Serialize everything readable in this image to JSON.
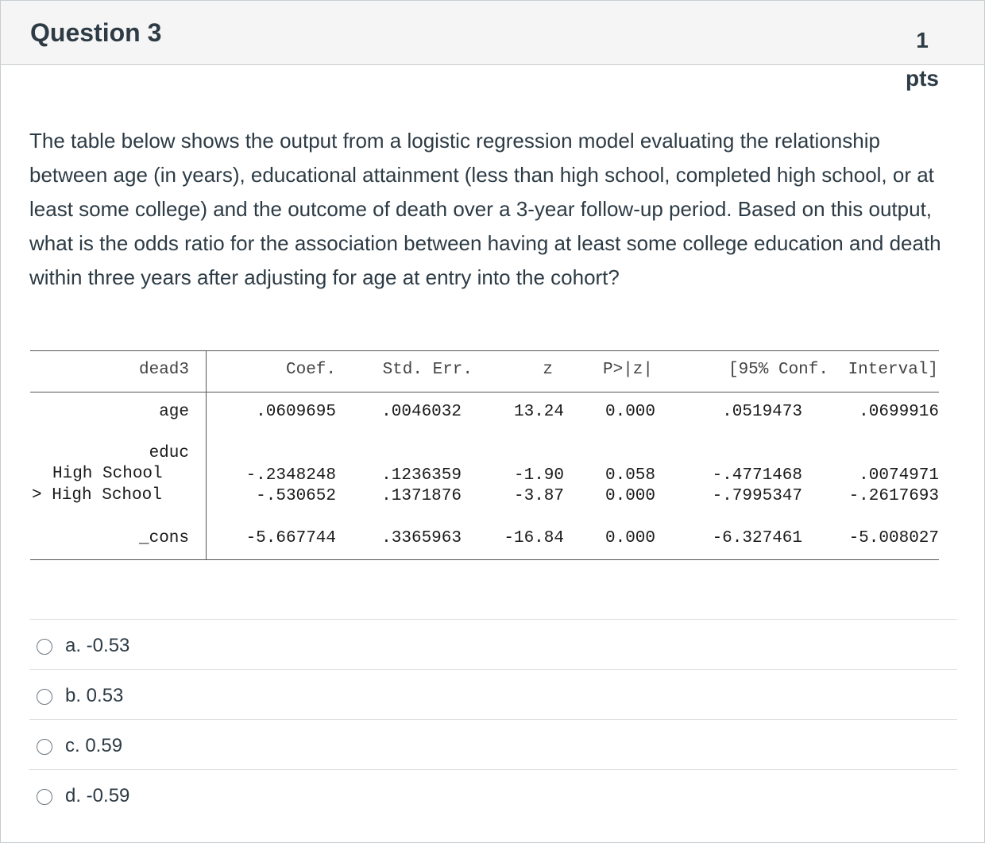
{
  "question": {
    "title": "Question 3",
    "points_value": "1",
    "points_unit": "pts",
    "prompt": "The table below shows the output from a logistic regression model evaluating the relationship between age (in years), educational attainment (less than high school, completed high school, or at least some college) and the outcome of death over a 3-year follow-up period. Based on this output, what is the odds ratio for the association between having at least some college education and death within three years after adjusting for age at entry into the cohort?"
  },
  "regression_table": {
    "dependent_var": "dead3",
    "columns": [
      "Coef.",
      "Std. Err.",
      "z",
      "P>|z|",
      "[95% Conf.",
      "Interval]"
    ],
    "rows": [
      {
        "label": "age",
        "coef": ".0609695",
        "se": ".0046032",
        "z": "13.24",
        "p": "0.000",
        "ci_low": ".0519473",
        "ci_high": ".0699916"
      },
      {
        "label": "educ"
      },
      {
        "label": "High School",
        "coef": "-.2348248",
        "se": ".1236359",
        "z": "-1.90",
        "p": "0.058",
        "ci_low": "-.4771468",
        "ci_high": ".0074971"
      },
      {
        "label": "> High School",
        "coef": "-.530652",
        "se": ".1371876",
        "z": "-3.87",
        "p": "0.000",
        "ci_low": "-.7995347",
        "ci_high": "-.2617693"
      },
      {
        "label": "_cons",
        "coef": "-5.667744",
        "se": ".3365963",
        "z": "-16.84",
        "p": "0.000",
        "ci_low": "-6.327461",
        "ci_high": "-5.008027"
      }
    ]
  },
  "answers": [
    {
      "label": "a. -0.53",
      "selected": false
    },
    {
      "label": "b. 0.53",
      "selected": false
    },
    {
      "label": "c. 0.59",
      "selected": false
    },
    {
      "label": "d. -0.59",
      "selected": false
    }
  ]
}
